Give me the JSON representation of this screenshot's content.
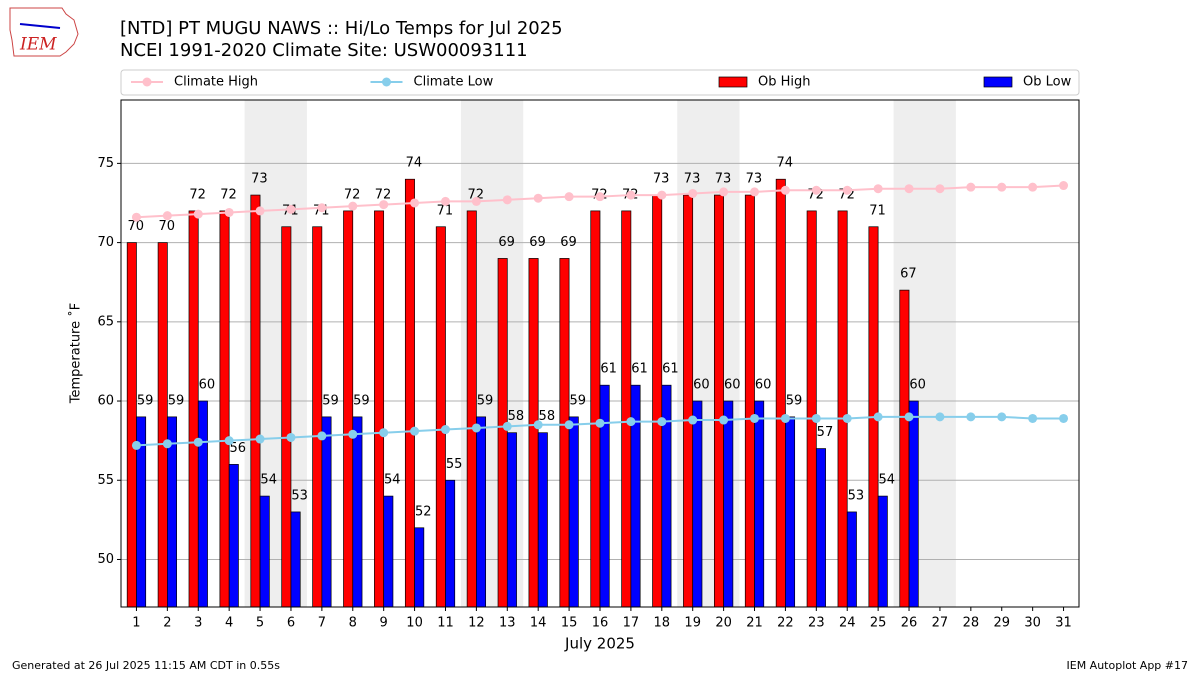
{
  "chart_data": {
    "type": "bar",
    "title": "[NTD] PT MUGU NAWS :: Hi/Lo Temps for Jul 2025",
    "subtitle": "NCEI 1991-2020 Climate Site: USW00093111",
    "y_label": "Temperature ˚F",
    "x_label": "July 2025",
    "logo_text": "IEM",
    "footer_left": "Generated at 26 Jul 2025 11:15 AM CDT in 0.55s",
    "footer_right": "IEM Autoplot App #17",
    "categories": [
      "1",
      "2",
      "3",
      "4",
      "5",
      "6",
      "7",
      "8",
      "9",
      "10",
      "11",
      "12",
      "13",
      "14",
      "15",
      "16",
      "17",
      "18",
      "19",
      "20",
      "21",
      "22",
      "23",
      "24",
      "25",
      "26",
      "27",
      "28",
      "29",
      "30",
      "31"
    ],
    "shaded_categories": [
      "5",
      "6",
      "12",
      "13",
      "19",
      "20",
      "26",
      "27"
    ],
    "series": [
      {
        "name": "Climate High",
        "type": "line",
        "color": "#ffc0cb",
        "values": [
          71.6,
          71.7,
          71.8,
          71.9,
          72.0,
          72.1,
          72.2,
          72.3,
          72.4,
          72.5,
          72.6,
          72.6,
          72.7,
          72.8,
          72.9,
          72.9,
          73.0,
          73.0,
          73.1,
          73.2,
          73.2,
          73.3,
          73.3,
          73.3,
          73.4,
          73.4,
          73.4,
          73.5,
          73.5,
          73.5,
          73.6
        ]
      },
      {
        "name": "Climate Low",
        "type": "line",
        "color": "#87ceeb",
        "values": [
          57.2,
          57.3,
          57.4,
          57.5,
          57.6,
          57.7,
          57.8,
          57.9,
          58.0,
          58.1,
          58.2,
          58.3,
          58.4,
          58.5,
          58.5,
          58.6,
          58.7,
          58.7,
          58.8,
          58.8,
          58.9,
          58.9,
          58.9,
          58.9,
          59.0,
          59.0,
          59.0,
          59.0,
          59.0,
          58.9,
          58.9
        ]
      },
      {
        "name": "Ob High",
        "type": "bar",
        "color": "#ff0000",
        "values": [
          70,
          70,
          72,
          72,
          73,
          71,
          71,
          72,
          72,
          74,
          71,
          72,
          69,
          69,
          69,
          72,
          72,
          73,
          73,
          73,
          73,
          74,
          72,
          72,
          71,
          67,
          null,
          null,
          null,
          null,
          null
        ]
      },
      {
        "name": "Ob Low",
        "type": "bar",
        "color": "#0000ff",
        "values": [
          59,
          59,
          60,
          56,
          54,
          53,
          59,
          59,
          54,
          52,
          55,
          59,
          58,
          58,
          59,
          61,
          61,
          61,
          60,
          60,
          60,
          59,
          57,
          53,
          54,
          60,
          null,
          null,
          null,
          null,
          null
        ]
      }
    ],
    "ylim": [
      47,
      79
    ],
    "yticks": [
      50,
      55,
      60,
      65,
      70,
      75
    ],
    "grid": true,
    "legend": "top"
  }
}
